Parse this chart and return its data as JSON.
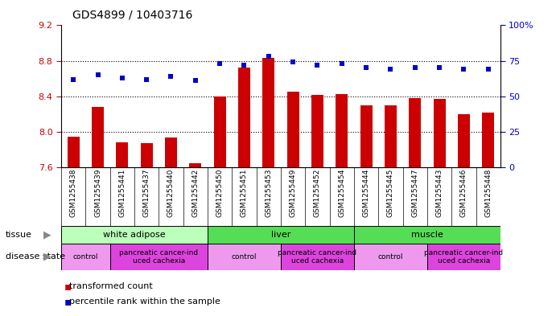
{
  "title": "GDS4899 / 10403716",
  "samples": [
    "GSM1255438",
    "GSM1255439",
    "GSM1255441",
    "GSM1255437",
    "GSM1255440",
    "GSM1255442",
    "GSM1255450",
    "GSM1255451",
    "GSM1255453",
    "GSM1255449",
    "GSM1255452",
    "GSM1255454",
    "GSM1255444",
    "GSM1255445",
    "GSM1255447",
    "GSM1255443",
    "GSM1255446",
    "GSM1255448"
  ],
  "transformed_count": [
    7.95,
    8.28,
    7.88,
    7.87,
    7.94,
    7.65,
    8.4,
    8.72,
    8.83,
    8.45,
    8.42,
    8.43,
    8.3,
    8.3,
    8.38,
    8.37,
    8.2,
    8.22
  ],
  "percentile_rank": [
    62,
    65,
    63,
    62,
    64,
    61,
    73,
    72,
    78,
    74,
    72,
    73,
    70,
    69,
    70,
    70,
    69,
    69
  ],
  "ylim_left": [
    7.6,
    9.2
  ],
  "ylim_right": [
    0,
    100
  ],
  "yticks_left": [
    7.6,
    8.0,
    8.4,
    8.8,
    9.2
  ],
  "yticks_right": [
    0,
    25,
    50,
    75,
    100
  ],
  "bar_color": "#cc0000",
  "dot_color": "#0000cc",
  "tissue_groups": [
    {
      "label": "white adipose",
      "start": 0,
      "end": 6,
      "color": "#aaffaa"
    },
    {
      "label": "liver",
      "start": 6,
      "end": 12,
      "color": "#55ee55"
    },
    {
      "label": "muscle",
      "start": 12,
      "end": 18,
      "color": "#55ee55"
    }
  ],
  "disease_groups": [
    {
      "label": "control",
      "start": 0,
      "end": 2,
      "color": "#ee88ee"
    },
    {
      "label": "pancreatic cancer-ind\nuced cachexia",
      "start": 2,
      "end": 6,
      "color": "#ee44ee"
    },
    {
      "label": "control",
      "start": 6,
      "end": 9,
      "color": "#ee88ee"
    },
    {
      "label": "pancreatic cancer-ind\nuced cachexia",
      "start": 9,
      "end": 12,
      "color": "#ee44ee"
    },
    {
      "label": "control",
      "start": 12,
      "end": 15,
      "color": "#ee88ee"
    },
    {
      "label": "pancreatic cancer-ind\nuced cachexia",
      "start": 15,
      "end": 18,
      "color": "#ee44ee"
    }
  ],
  "bar_width": 0.5,
  "background_color": "#ffffff",
  "tick_label_fontsize": 6.5,
  "axis_label_color_left": "#cc0000",
  "axis_label_color_right": "#0000cc",
  "xtick_bg_color": "#cccccc",
  "tissue_light_color": "#bbffbb",
  "tissue_dark_color": "#55dd55",
  "disease_light_color": "#ee99ee",
  "disease_dark_color": "#dd44dd"
}
